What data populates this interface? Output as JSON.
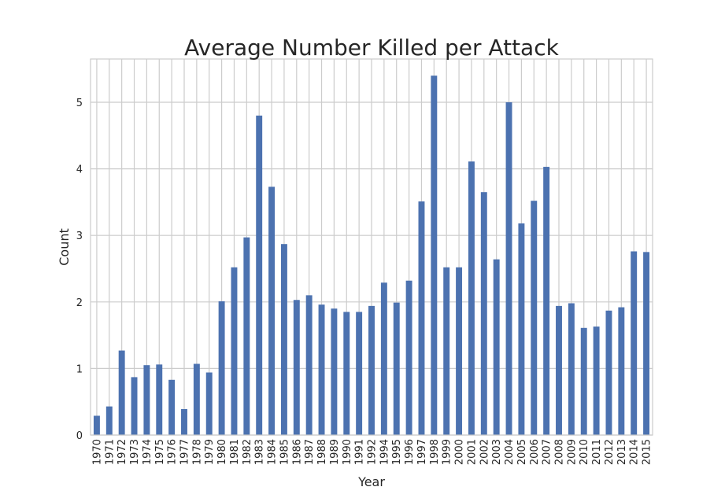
{
  "chart_data": {
    "type": "bar",
    "title": "Average Number Killed per Attack",
    "xlabel": "Year",
    "ylabel": "Count",
    "ylim": [
      0,
      5.65
    ],
    "yticks": [
      0,
      1,
      2,
      3,
      4,
      5
    ],
    "grid": true,
    "bar_color": "#4c72b0",
    "grid_color": "#cccccc",
    "categories": [
      "1970",
      "1971",
      "1972",
      "1973",
      "1974",
      "1975",
      "1976",
      "1977",
      "1978",
      "1979",
      "1980",
      "1981",
      "1982",
      "1983",
      "1984",
      "1985",
      "1986",
      "1987",
      "1988",
      "1989",
      "1990",
      "1991",
      "1992",
      "1994",
      "1995",
      "1996",
      "1997",
      "1998",
      "1999",
      "2000",
      "2001",
      "2002",
      "2003",
      "2004",
      "2005",
      "2006",
      "2007",
      "2008",
      "2009",
      "2010",
      "2011",
      "2012",
      "2013",
      "2014",
      "2015"
    ],
    "values": [
      0.29,
      0.43,
      1.27,
      0.87,
      1.05,
      1.06,
      0.83,
      0.39,
      1.07,
      0.94,
      2.01,
      2.52,
      2.97,
      4.8,
      3.73,
      2.87,
      2.03,
      2.1,
      1.96,
      1.9,
      1.85,
      1.85,
      1.94,
      2.29,
      1.99,
      2.32,
      3.51,
      5.4,
      2.52,
      2.52,
      4.11,
      3.65,
      2.64,
      5.0,
      3.18,
      3.52,
      4.03,
      1.94,
      1.98,
      1.61,
      1.63,
      1.87,
      1.92,
      2.76,
      2.75
    ]
  }
}
